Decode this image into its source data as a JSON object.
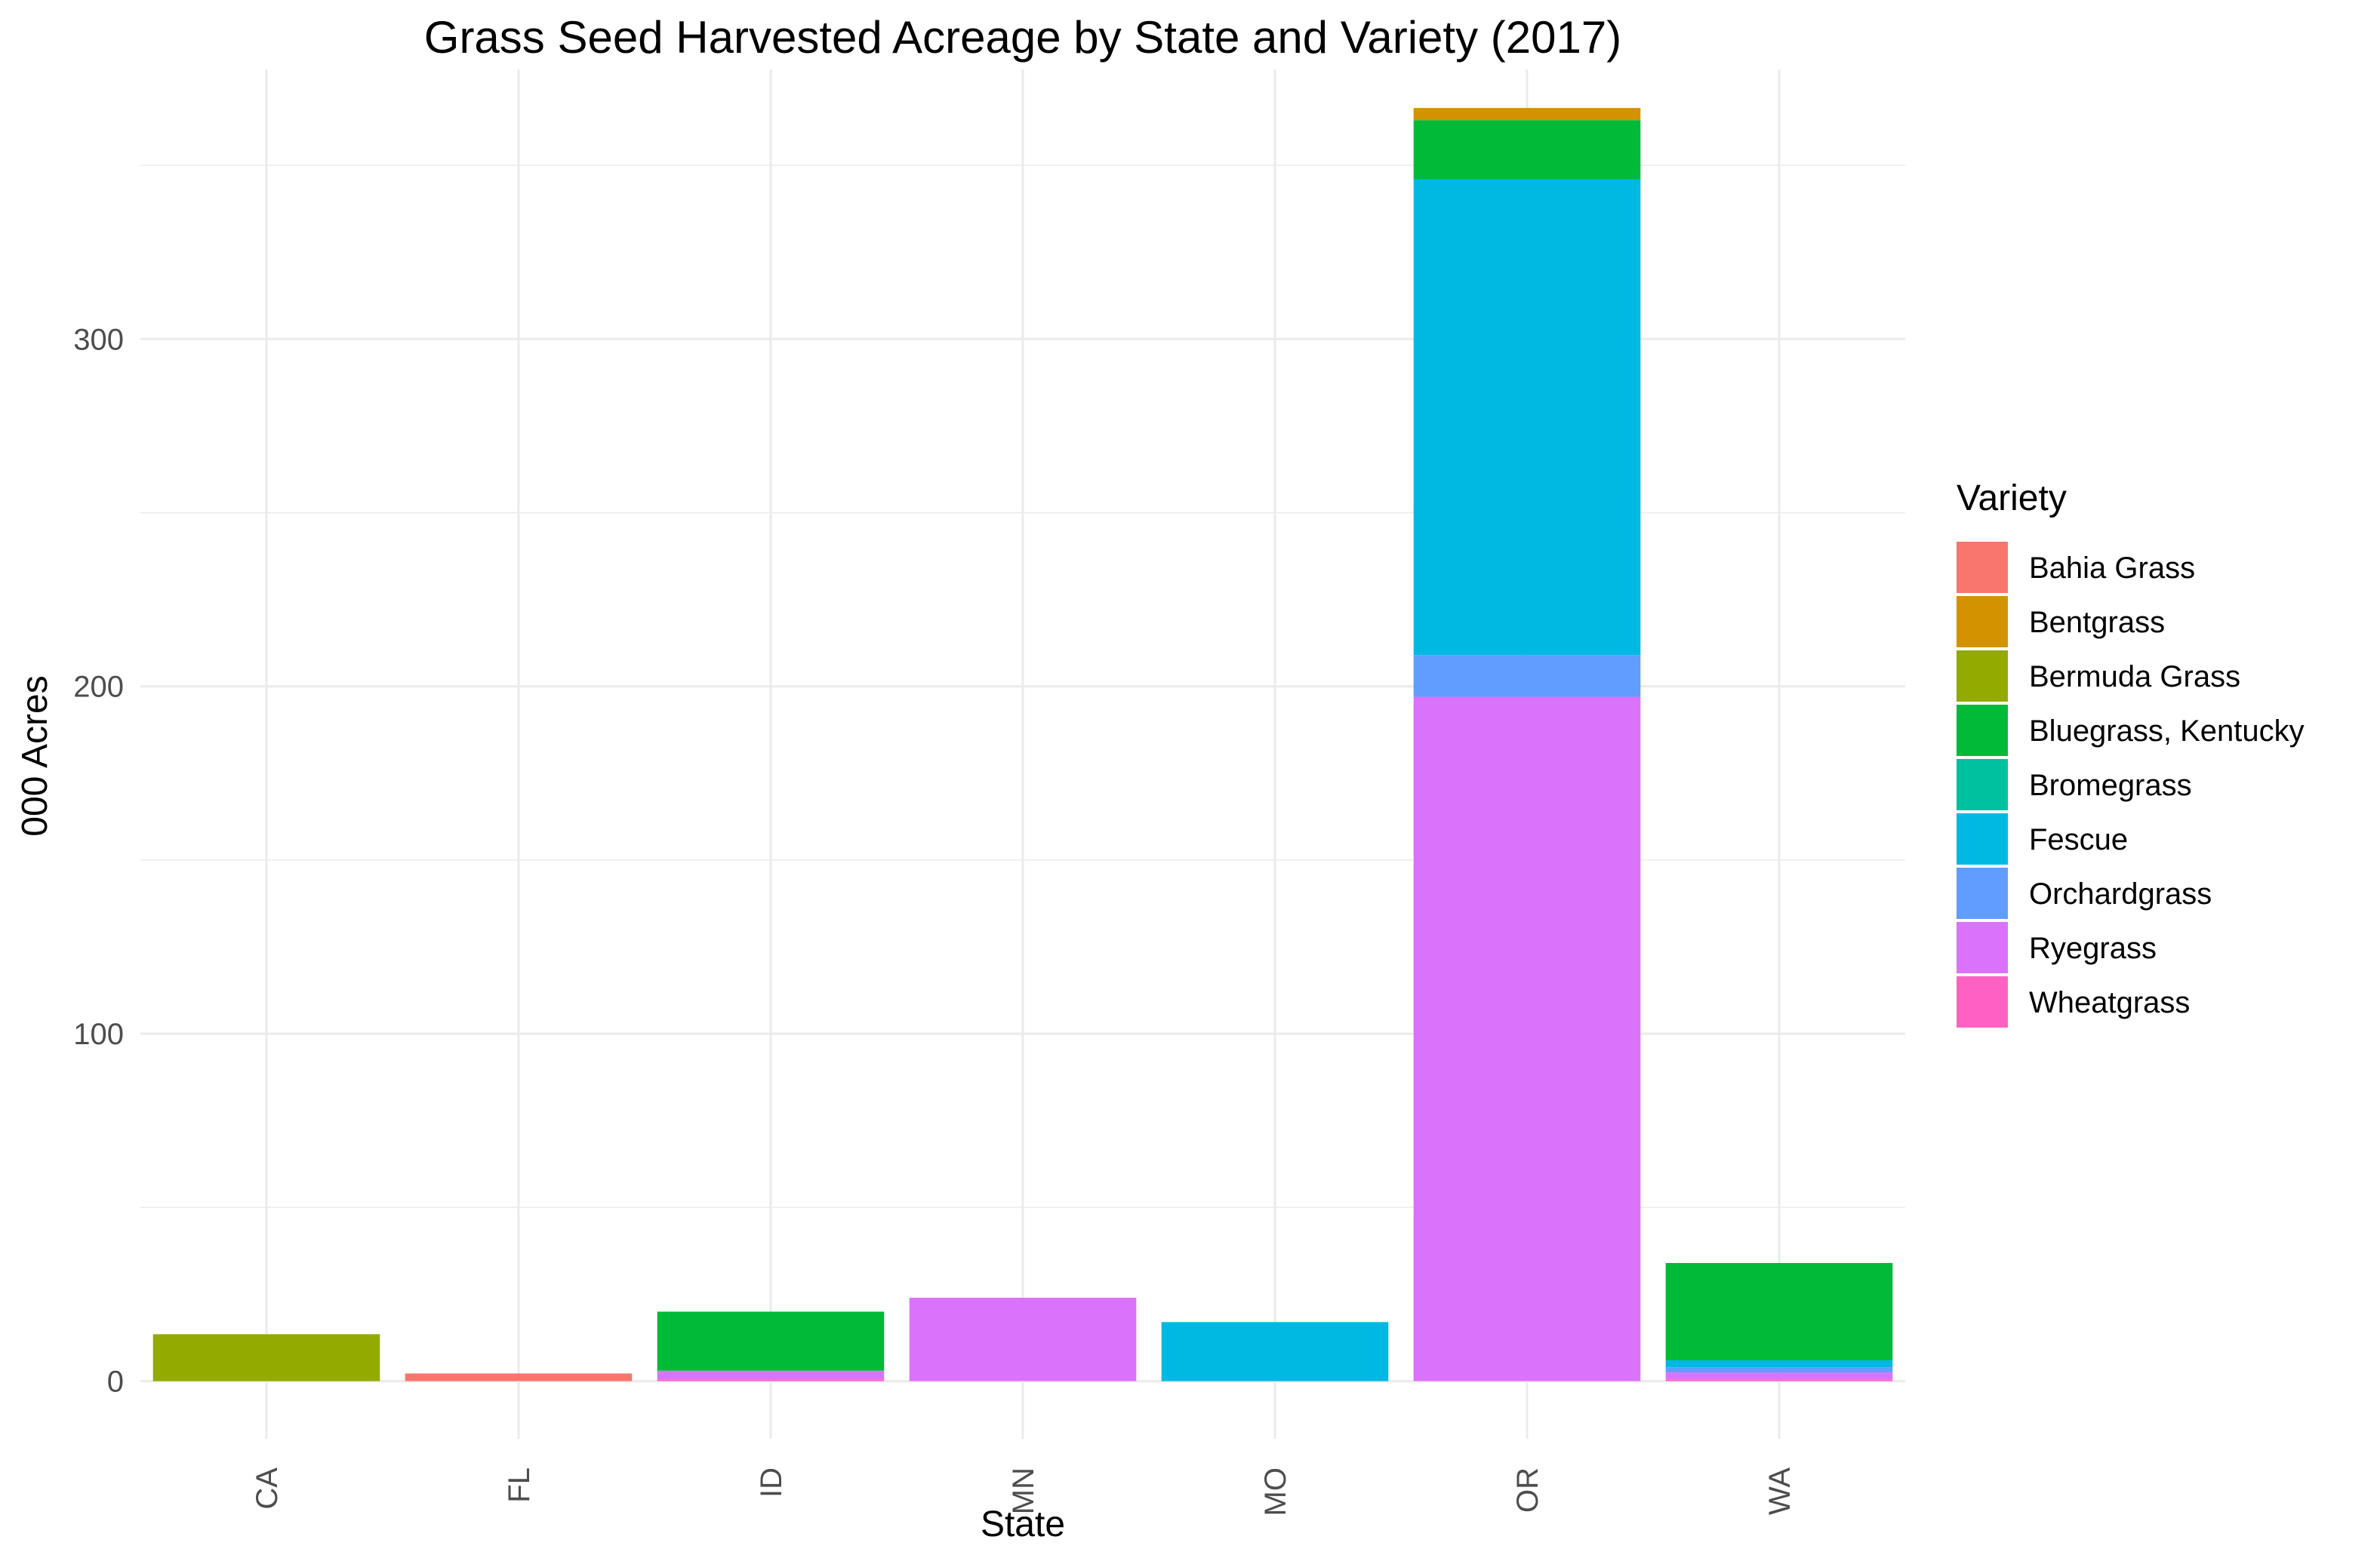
{
  "chart_data": {
    "type": "bar",
    "stacked": true,
    "title": "Grass Seed Harvested Acreage by State and Variety (2017)",
    "xlabel": "State",
    "ylabel": "000 Acres",
    "categories": [
      "CA",
      "FL",
      "ID",
      "MN",
      "MO",
      "OR",
      "WA"
    ],
    "ylim": [
      -16.6,
      377.6
    ],
    "yticks": [
      0,
      100,
      200,
      300
    ],
    "grid": true,
    "legend": {
      "title": "Variety",
      "placement": "right"
    },
    "series": [
      {
        "name": "Bahia Grass",
        "color": "#F8766D",
        "values": [
          0,
          2.2,
          0,
          0,
          0,
          0,
          0
        ]
      },
      {
        "name": "Bentgrass",
        "color": "#D39200",
        "values": [
          0,
          0,
          0,
          0,
          0,
          3.5,
          0
        ]
      },
      {
        "name": "Bermuda Grass",
        "color": "#93AA00",
        "values": [
          13.5,
          0,
          0,
          0,
          0,
          0,
          0
        ]
      },
      {
        "name": "Bluegrass, Kentucky",
        "color": "#00BA38",
        "values": [
          0,
          0,
          17,
          0,
          0,
          17,
          28
        ]
      },
      {
        "name": "Bromegrass",
        "color": "#00C19F",
        "values": [
          0,
          0,
          0,
          0,
          0,
          0,
          0
        ]
      },
      {
        "name": "Fescue",
        "color": "#00B9E3",
        "values": [
          0,
          0,
          0,
          0,
          17,
          137,
          2
        ]
      },
      {
        "name": "Orchardgrass",
        "color": "#619CFF",
        "values": [
          0,
          0,
          0,
          0,
          0,
          12,
          1.5
        ]
      },
      {
        "name": "Ryegrass",
        "color": "#DB72FB",
        "values": [
          0,
          0,
          2.5,
          24,
          0,
          197,
          2
        ]
      },
      {
        "name": "Wheatgrass",
        "color": "#FF61C3",
        "values": [
          0,
          0,
          0.5,
          0,
          0,
          0,
          0.5
        ]
      }
    ]
  }
}
